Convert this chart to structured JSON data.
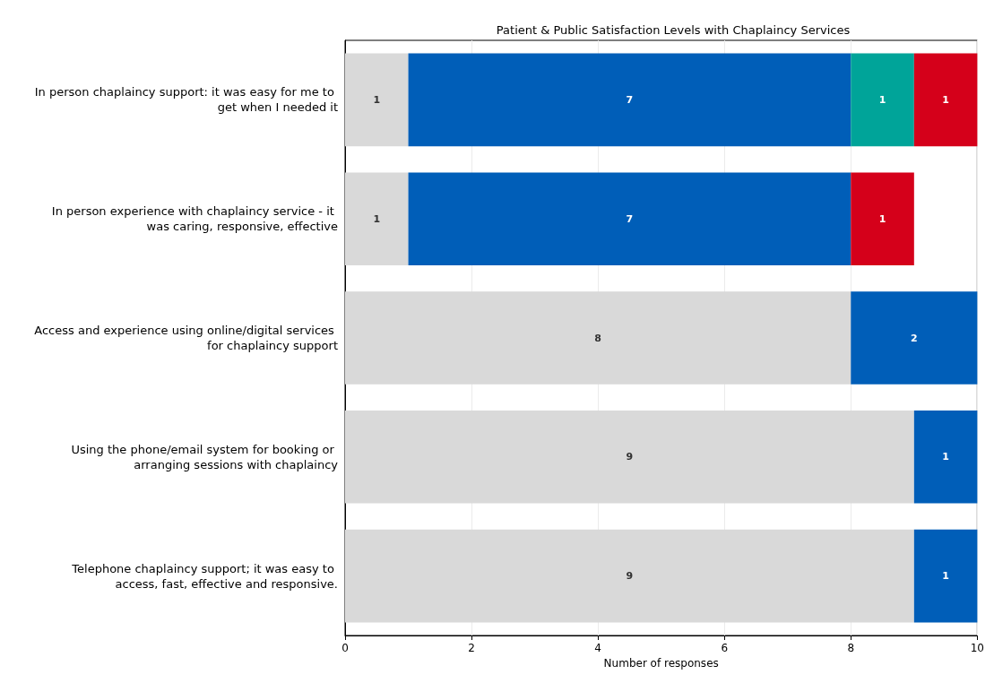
{
  "chart_data": {
    "type": "bar",
    "orientation": "horizontal",
    "stacked": true,
    "title": "Patient & Public Satisfaction Levels with Chaplaincy Services",
    "xlabel": "Number of responses",
    "categories": [
      "In person chaplaincy support: it was easy for me to get when I needed it",
      "In person experience with chaplaincy service - it was caring, responsive, effective",
      "Access and experience using online/digital services for chaplaincy support",
      "Using the phone/email system for booking or arranging sessions with chaplaincy",
      "Telephone chaplaincy support; it was easy to access, fast, effective and responsive."
    ],
    "series": [
      {
        "color": "#d9d9d9",
        "values": [
          1,
          1,
          8,
          9,
          9
        ]
      },
      {
        "color": "#005eb8",
        "values": [
          7,
          7,
          2,
          1,
          1
        ]
      },
      {
        "color": "#00a499",
        "values": [
          1,
          null,
          null,
          null,
          null
        ]
      },
      {
        "color": "#d5001a",
        "values": [
          1,
          1,
          null,
          null,
          null
        ]
      }
    ],
    "xlim": [
      0,
      10
    ],
    "xticks": [
      0,
      2,
      4,
      6,
      8,
      10
    ],
    "grid": "x",
    "data_labels": true
  }
}
